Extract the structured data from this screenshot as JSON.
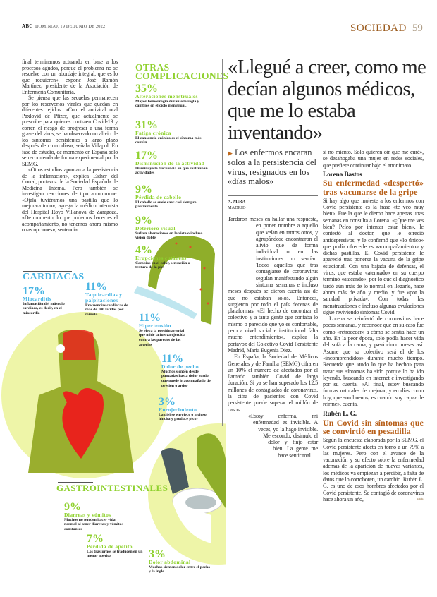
{
  "header": {
    "brand": "ABC",
    "date": "DOMINGO, 19 DE JUNIO DE 2022",
    "section": "SOCIEDAD",
    "page_number": "59"
  },
  "left_column": {
    "paragraphs": [
      "final terminamos actuando en base a los procesos agudos, porque el problema no se resuelve con un abordaje integral, que es lo que requieren», expone José Ramón Martínez, presidente de la Asociación de Enfermería Comunitaria.",
      "Se piensa que las secuelas permanecen por los reservorios virales que quedan en diferentes tejidos. «Con el antiviral oral Paxlovid de Pfizer, que actualmente se prescribe para quienes contraen Covid-19 y corren el riesgo de progresar a una forma grave del virus, se ha observado un alivio de los síntomas persistentes a largo plazo después de cinco días», señala Villapol. En fase de estudio, de momento en España solo se recomienda de forma experimental por la SEMG.",
      "«Otros estudios apuntan a la persistencia de la inflamación», explica Esther del Corral, portavoz de la Sociedad Española de Medicina Interna. Pero también se investigan reacciones de tipo autoinmune. «Ojalá tuviéramos una pastilla que lo mejorara todo», agrega la médico internista del Hospital Royo Villanova de Zaragoza. «De momento, lo que podemos hacer es el acompañamiento, no tenemos ahora mismo otras opciones», sentencia."
    ]
  },
  "infographic": {
    "colors": {
      "green": "#8fd12e",
      "blue": "#48b4e3",
      "yellow": "#eef5a8",
      "figure_green": "#9aae2e",
      "heart_red": "#e8241c"
    },
    "otras": {
      "title_line1": "OTRAS",
      "title_line2": "COMPLICACIONES",
      "items": [
        {
          "pct": "35%",
          "title": "Alteraciones menstruales",
          "desc": "Mayor hemorragia durante la regla y cambios en el ciclo menstrual."
        },
        {
          "pct": "31%",
          "title": "Fatiga crónica",
          "desc": "El cansancio crónico es el síntoma más común"
        },
        {
          "pct": "17%",
          "title": "Disminución de la actividad",
          "desc": "Disminuye la frecuencia en que realizaban actividades"
        },
        {
          "pct": "9%",
          "title": "Pérdida de cabello",
          "desc": "El cabello se suele caer casi siempre parcialmente"
        },
        {
          "pct": "9%",
          "title": "Deterioro visual",
          "desc": "Sufren alteraciones en la vista o incluso visión doble"
        },
        {
          "pct": "4%",
          "title": "Erupciones cutáneas",
          "desc": "Cambios en el color, sensación o textura de la piel"
        }
      ]
    },
    "cardiacas": {
      "title": "CARDIACAS",
      "items": [
        {
          "pct": "17%",
          "title": "Miocarditis",
          "desc": "Inflamación del músculo cardiaco, es decir, en el miocardio"
        },
        {
          "pct": "11%",
          "title": "Taquicardias y palpitaciones",
          "desc": "Frecuencias cardiacas de más de 100 latidos por minuto"
        },
        {
          "pct": "11%",
          "title": "Hipertensión",
          "desc": "Se eleva la presión arterial que mide la fuerza ejercida contra las paredes de las arterias"
        },
        {
          "pct": "11%",
          "title": "Dolor de pecho",
          "desc": "Muchos sienten desde punzadas hasta dolor sordo que puede ir acompañado de presión o ardor"
        },
        {
          "pct": "3%",
          "title": "Enrojecimiento",
          "desc": "La piel se enrojece o incluso hincha y produce picor"
        }
      ]
    },
    "gastro": {
      "title": "GASTROINTESTINALES",
      "items": [
        {
          "pct": "9%",
          "title": "Diarreas y vómitos",
          "desc": "Muchos no pueden hacer vida normal al tener diarreas y vómitos constantes"
        },
        {
          "pct": "7%",
          "title": "Pérdida de apetito",
          "desc": "Los trastornos se traducen en un menor apetito"
        },
        {
          "pct": "3%",
          "title": "Dolor abdominal",
          "desc": "Muchos sienten dolor entre el pecho y la ingle"
        }
      ]
    }
  },
  "article": {
    "headline": "«Llegué a creer, como me decían algunos médicos, que me lo estaba inventando»",
    "deck": "Los enfermos encaran solos a la persistencia del virus, resignados en los «días malos»",
    "byline": "N. MIRA",
    "location": "MADRID",
    "col1": {
      "p1": "Tardaron meses en hallar una respuesta, en poner nombre a aquello que veían en tantos otros, y agrupándose encontraron el alivio que de forma individual o en las instituciones no sentían. Todos aquellos que tras contagiarse de coronavirus seguían manifestando algún síntoma semanas e incluso meses después se dieron cuenta así de que no estaban solos. Entonces, surgieron por todo el país decenas de plataformas. «El hecho de encontrar el colectivo y a tanta gente que contaba lo mismo o parecido que yo es confortable, pero a nivel social e institucional falta mucho entendimiento», explica la portavoz del Colectivo Covid Persistente Madrid, María Eugenia Díez.",
      "p2": "En España, la Sociedad de Médicos Generales y de Familia (SEMG) cifra en un 10% el número de afectados por el llamado también Covid de larga duración. Si ya se han superado los 12,5 millones de contagiados de coronavirus, la cifra de pacientes con Covid persistente puede superar el millón de casos.",
      "p3": "«Estoy enferma, mi enfermedad es invisible. A veces, yo la hago invisible. Me escondo, disimulo el dolor y finjo estar bien. La gente me hace sentir mal"
    },
    "col2": {
      "p0": "si no miento. Solo quieren oír que me curé», se desahogaba una mujer en redes sociales, que prefiere continuar bajo el anonimato.",
      "lorena": {
        "name": "Lorena Bastos",
        "subhead": "Su enfermedad «despertó» tras vacunarse de la gripe",
        "p1": "Si hay algo que moleste a los enfermos con Covid persistente es la frase «te veo muy bien». Fue la que le dieron hace apenas unas semanas en consulta a Lorena. «¿Que me ves bien? Peleo por intentar estar bien», le contestó al doctor, que le ofreció antidepresivos, y le confirmó que «lo único» que podía ofrecerle es «acompañamiento» y dichas pastillas. El Covid persistente le apareció tras ponerse la vacuna de la gripe estacional. Con una bajada de defensas, el virus, que estaba «atenuado» en su cuerpo terminó «atacando», por lo que el diagnóstico tardó aún más de lo normal en llegarle, hace ahora más de año y medio, y fue «por la sanidad privada». Con todas las menstruaciones e incluso algunas ovulaciones sigue reviviendo síntomas Covid.",
        "p2": "Lorena se reinfectó de coronavirus hace pocas semanas, y reconoce que en su caso fue como «retroceder» a cómo se sentía hace un año. En la peor época, solo podía hacer vida del sofá a la cama, y pasó cinco meses así. Asume que su colectivo será el de los «incomprendidos» durante mucho tiempo. Recuerda que «todo lo que ha hecho» para tratar sus síntomas ha sido porque lo ha ido leyendo, buscando en internet e investigando por su cuenta. «Al final, estoy buscando formas naturales de mejorar, y en días como hoy, que son buenos, es cuando soy capaz de reírme», cuenta."
      },
      "ruben": {
        "name": "Rubén L. G.",
        "subhead": "Un Covid sin síntomas que se convirtió en pesadilla",
        "p1": "Según la encuesta elaborada por la SEMG, el Covid persistente afecta en torno a un 79% a las mujeres. Pero con el avance de la vacunación y su efecto sobre la enfermedad además de la aparición de nuevas variantes, los médicos ya empiezan a percibir, a falta de datos que lo corroboren, un cambio. Rubén L. G. es uno de esos hombres afectados por el Covid persistente. Se contagió de coronavirus hace ahora un año,",
        "continue_marker": "▸▸▸"
      }
    },
    "accent_color": "#b8601a"
  }
}
